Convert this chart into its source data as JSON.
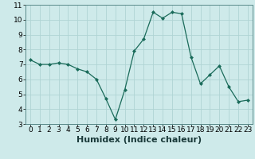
{
  "x": [
    0,
    1,
    2,
    3,
    4,
    5,
    6,
    7,
    8,
    9,
    10,
    11,
    12,
    13,
    14,
    15,
    16,
    17,
    18,
    19,
    20,
    21,
    22,
    23
  ],
  "y": [
    7.3,
    7.0,
    7.0,
    7.1,
    7.0,
    6.7,
    6.5,
    6.0,
    4.7,
    3.3,
    5.3,
    7.9,
    8.7,
    10.5,
    10.1,
    10.5,
    10.4,
    7.5,
    5.7,
    6.3,
    6.9,
    5.5,
    4.5,
    4.6
  ],
  "xlabel": "Humidex (Indice chaleur)",
  "xlim": [
    -0.5,
    23.5
  ],
  "ylim": [
    3,
    11
  ],
  "yticks": [
    3,
    4,
    5,
    6,
    7,
    8,
    9,
    10,
    11
  ],
  "line_color": "#1a6b5a",
  "marker_color": "#1a6b5a",
  "bg_color": "#ceeaea",
  "grid_color": "#b0d4d4",
  "xlabel_fontsize": 8,
  "tick_fontsize": 6.5
}
